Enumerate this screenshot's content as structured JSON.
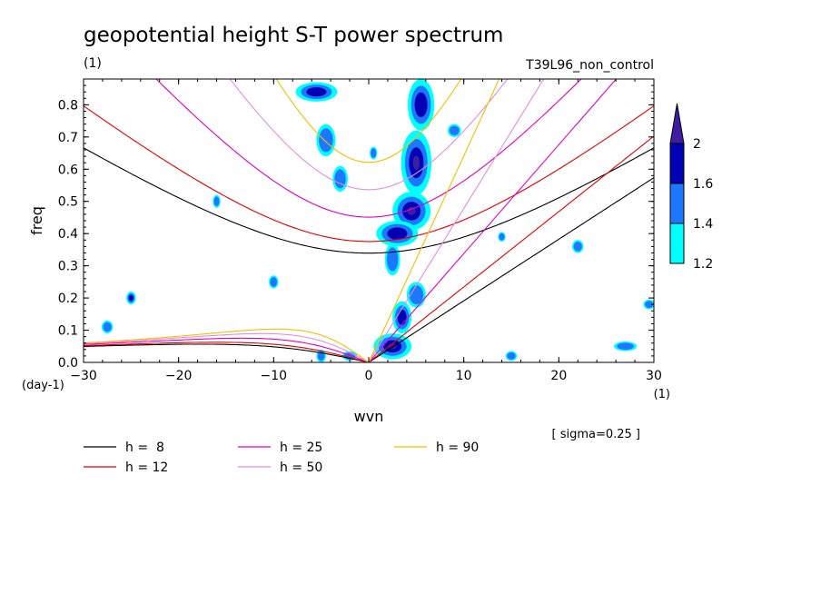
{
  "chart_data": {
    "type": "contour",
    "title": "geopotential height S-T power spectrum",
    "subtitle_left": "(1)",
    "subtitle_right": "T39L96_non_control",
    "xlabel": "wvn",
    "ylabel": "freq",
    "x_unit": "(1)",
    "y_unit": "(day-1)",
    "xlim": [
      -30,
      30
    ],
    "ylim": [
      0,
      0.88
    ],
    "x_ticks": [
      -30,
      -20,
      -10,
      0,
      10,
      20,
      30
    ],
    "y_ticks": [
      0.0,
      0.1,
      0.2,
      0.3,
      0.4,
      0.5,
      0.6,
      0.7,
      0.8
    ],
    "y_tick_labels": [
      "0.0",
      "0.1",
      "0.2",
      "0.3",
      "0.4",
      "0.5",
      "0.6",
      "0.7",
      "0.8"
    ],
    "sigma_note": "[ sigma=0.25 ]",
    "colorbar": {
      "levels": [
        "1.2",
        "1.4",
        "1.6",
        "2"
      ],
      "colors": [
        "#00ffff",
        "#1e78ff",
        "#0000b4",
        "#3c1ea0"
      ]
    },
    "dispersion_curves": [
      {
        "label": "h =  8",
        "h": 8,
        "color": "#000000"
      },
      {
        "label": "h = 12",
        "h": 12,
        "color": "#e00000"
      },
      {
        "label": "h = 25",
        "h": 25,
        "color": "#e000c0"
      },
      {
        "label": "h = 50",
        "h": 50,
        "color": "#e090e0"
      },
      {
        "label": "h = 90",
        "h": 90,
        "color": "#f0c000"
      }
    ],
    "power_blobs": [
      {
        "x": 5.5,
        "y": 0.8,
        "rx": 1.4,
        "ry": 0.08,
        "level": 2
      },
      {
        "x": 5.0,
        "y": 0.62,
        "rx": 1.6,
        "ry": 0.1,
        "level": 3
      },
      {
        "x": 4.5,
        "y": 0.47,
        "rx": 2.0,
        "ry": 0.06,
        "level": 3
      },
      {
        "x": 3.0,
        "y": 0.4,
        "rx": 2.2,
        "ry": 0.04,
        "level": 2
      },
      {
        "x": 2.5,
        "y": 0.32,
        "rx": 0.8,
        "ry": 0.05,
        "level": 1
      },
      {
        "x": 5.0,
        "y": 0.21,
        "rx": 1.0,
        "ry": 0.04,
        "level": 1
      },
      {
        "x": 3.5,
        "y": 0.14,
        "rx": 1.0,
        "ry": 0.05,
        "level": 2
      },
      {
        "x": 2.5,
        "y": 0.05,
        "rx": 2.0,
        "ry": 0.04,
        "level": 3
      },
      {
        "x": -5.5,
        "y": 0.84,
        "rx": 2.2,
        "ry": 0.03,
        "level": 2
      },
      {
        "x": -4.5,
        "y": 0.69,
        "rx": 1.0,
        "ry": 0.05,
        "level": 1
      },
      {
        "x": -3.0,
        "y": 0.57,
        "rx": 0.8,
        "ry": 0.04,
        "level": 1
      },
      {
        "x": 0.5,
        "y": 0.65,
        "rx": 0.4,
        "ry": 0.02,
        "level": 1
      },
      {
        "x": 9.0,
        "y": 0.72,
        "rx": 0.7,
        "ry": 0.02,
        "level": 1
      },
      {
        "x": -25.0,
        "y": 0.2,
        "rx": 0.5,
        "ry": 0.02,
        "level": 2
      },
      {
        "x": -27.5,
        "y": 0.11,
        "rx": 0.6,
        "ry": 0.02,
        "level": 1
      },
      {
        "x": 22.0,
        "y": 0.36,
        "rx": 0.6,
        "ry": 0.02,
        "level": 1
      },
      {
        "x": 27.0,
        "y": 0.05,
        "rx": 1.2,
        "ry": 0.015,
        "level": 1
      },
      {
        "x": 15.0,
        "y": 0.02,
        "rx": 0.6,
        "ry": 0.015,
        "level": 1
      },
      {
        "x": -5.0,
        "y": 0.02,
        "rx": 0.5,
        "ry": 0.02,
        "level": 1
      },
      {
        "x": -2.0,
        "y": 0.02,
        "rx": 0.8,
        "ry": 0.015,
        "level": 1
      },
      {
        "x": 29.5,
        "y": 0.18,
        "rx": 0.6,
        "ry": 0.015,
        "level": 1
      },
      {
        "x": -16.0,
        "y": 0.5,
        "rx": 0.4,
        "ry": 0.02,
        "level": 1
      },
      {
        "x": -10.0,
        "y": 0.25,
        "rx": 0.5,
        "ry": 0.02,
        "level": 1
      },
      {
        "x": 14.0,
        "y": 0.39,
        "rx": 0.4,
        "ry": 0.015,
        "level": 1
      }
    ]
  }
}
